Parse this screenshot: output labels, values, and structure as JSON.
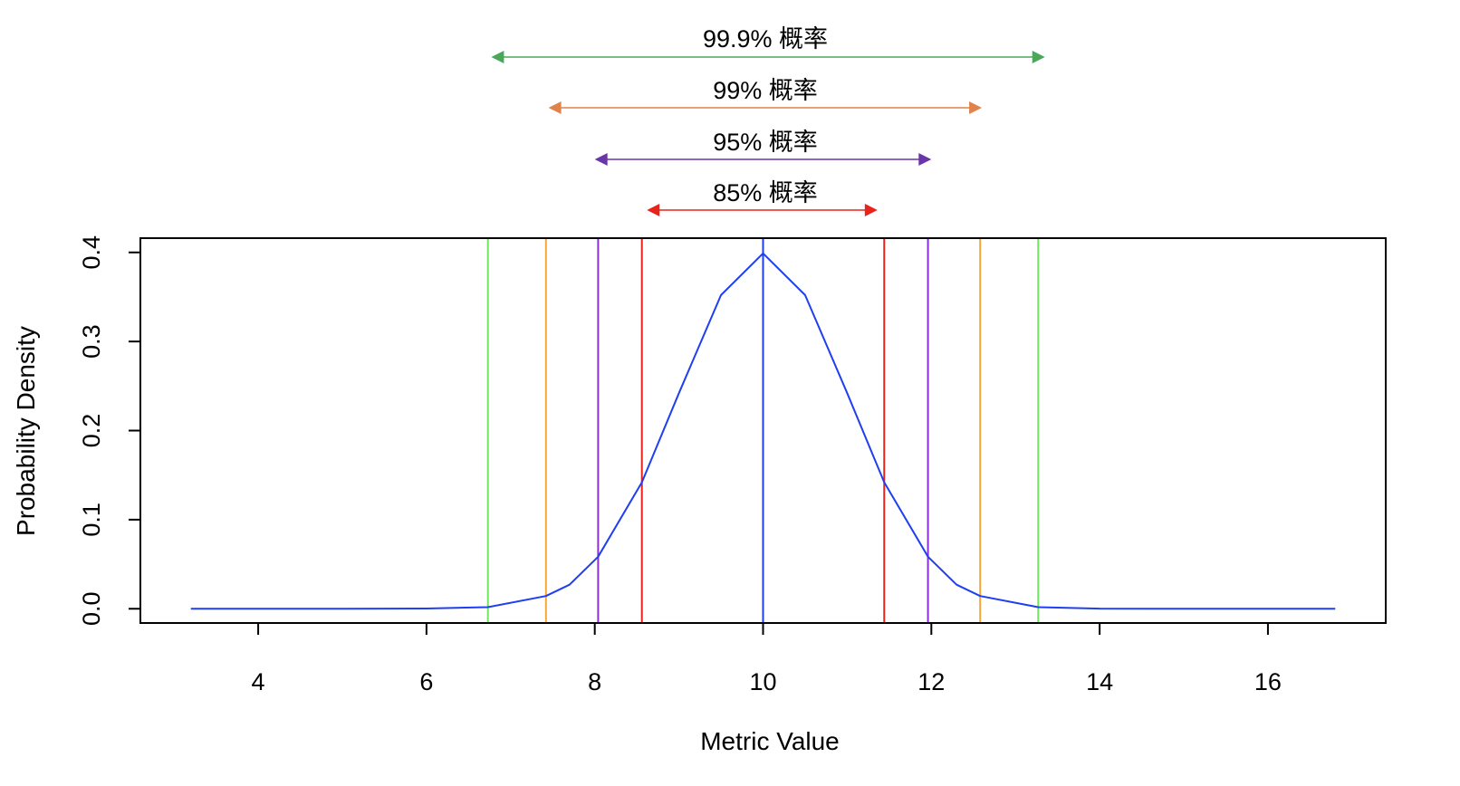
{
  "chart_data": {
    "type": "line",
    "title": "",
    "xlabel": "Metric Value",
    "ylabel": "Probability Density",
    "xlim": [
      2.6,
      17.4
    ],
    "ylim": [
      -0.016,
      0.416
    ],
    "x_ticks": [
      4,
      6,
      8,
      10,
      12,
      14,
      16
    ],
    "y_ticks": [
      0.0,
      0.1,
      0.2,
      0.3,
      0.4
    ],
    "x_tick_labels": [
      "4",
      "6",
      "8",
      "10",
      "12",
      "14",
      "16"
    ],
    "y_tick_labels": [
      "0.0",
      "0.1",
      "0.2",
      "0.3",
      "0.4"
    ],
    "grid": false,
    "legend": "none",
    "series": [
      {
        "color": "#1f3ff0",
        "x": [
          3.2,
          4,
          5,
          6,
          6.73,
          7.42,
          7.7,
          8.04,
          8.56,
          9,
          9.5,
          10,
          10.5,
          11,
          11.44,
          11.96,
          12.3,
          12.58,
          13.27,
          14,
          15,
          16,
          16.8
        ],
        "y": [
          0.0,
          0.0,
          0.0,
          0.0003,
          0.0018,
          0.0143,
          0.027,
          0.0584,
          0.1419,
          0.242,
          0.3521,
          0.3989,
          0.3521,
          0.242,
          0.1419,
          0.0584,
          0.027,
          0.0143,
          0.0018,
          0.0001,
          0.0,
          0.0,
          0.0
        ]
      }
    ],
    "mean_line": {
      "x": 10,
      "color": "#1f3ff0"
    },
    "intervals": [
      {
        "label": "85% 概率",
        "low": 8.56,
        "high": 11.44,
        "line_color": "#e8231c",
        "arrow_color": "#e8231c",
        "arrow_from": 8.62,
        "arrow_to": 11.36
      },
      {
        "label": "95% 概率",
        "low": 8.04,
        "high": 11.96,
        "line_color": "#8d2fd9",
        "arrow_color": "#6a35a8",
        "arrow_from": 8.0,
        "arrow_to": 12.0
      },
      {
        "label": "99% 概率",
        "low": 7.42,
        "high": 12.58,
        "line_color": "#f4a63a",
        "arrow_color": "#e0824a",
        "arrow_from": 7.45,
        "arrow_to": 12.6
      },
      {
        "label": "99.9% 概率",
        "low": 6.73,
        "high": 13.27,
        "line_color": "#6ce85a",
        "arrow_color": "#4aa85a",
        "arrow_from": 6.77,
        "arrow_to": 13.35
      }
    ]
  }
}
